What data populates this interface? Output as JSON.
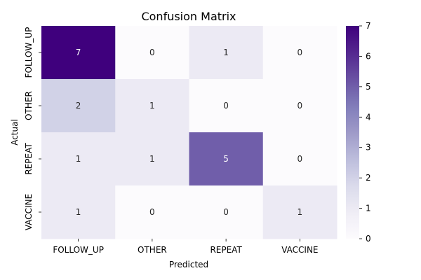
{
  "chart_data": {
    "type": "heatmap",
    "title": "Confusion Matrix",
    "xlabel": "Predicted",
    "ylabel": "Actual",
    "x_categories": [
      "FOLLOW_UP",
      "OTHER",
      "REPEAT",
      "VACCINE"
    ],
    "y_categories": [
      "FOLLOW_UP",
      "OTHER",
      "REPEAT",
      "VACCINE"
    ],
    "values": [
      [
        7,
        0,
        1,
        0
      ],
      [
        2,
        1,
        0,
        0
      ],
      [
        1,
        1,
        5,
        0
      ],
      [
        1,
        0,
        0,
        1
      ]
    ],
    "colorbar": {
      "min": 0,
      "max": 7,
      "ticks": [
        "0",
        "1",
        "2",
        "3",
        "4",
        "5",
        "6",
        "7"
      ],
      "colormap": "Purples",
      "color_low": "#fcfbfd",
      "color_high": "#3f007d"
    }
  }
}
